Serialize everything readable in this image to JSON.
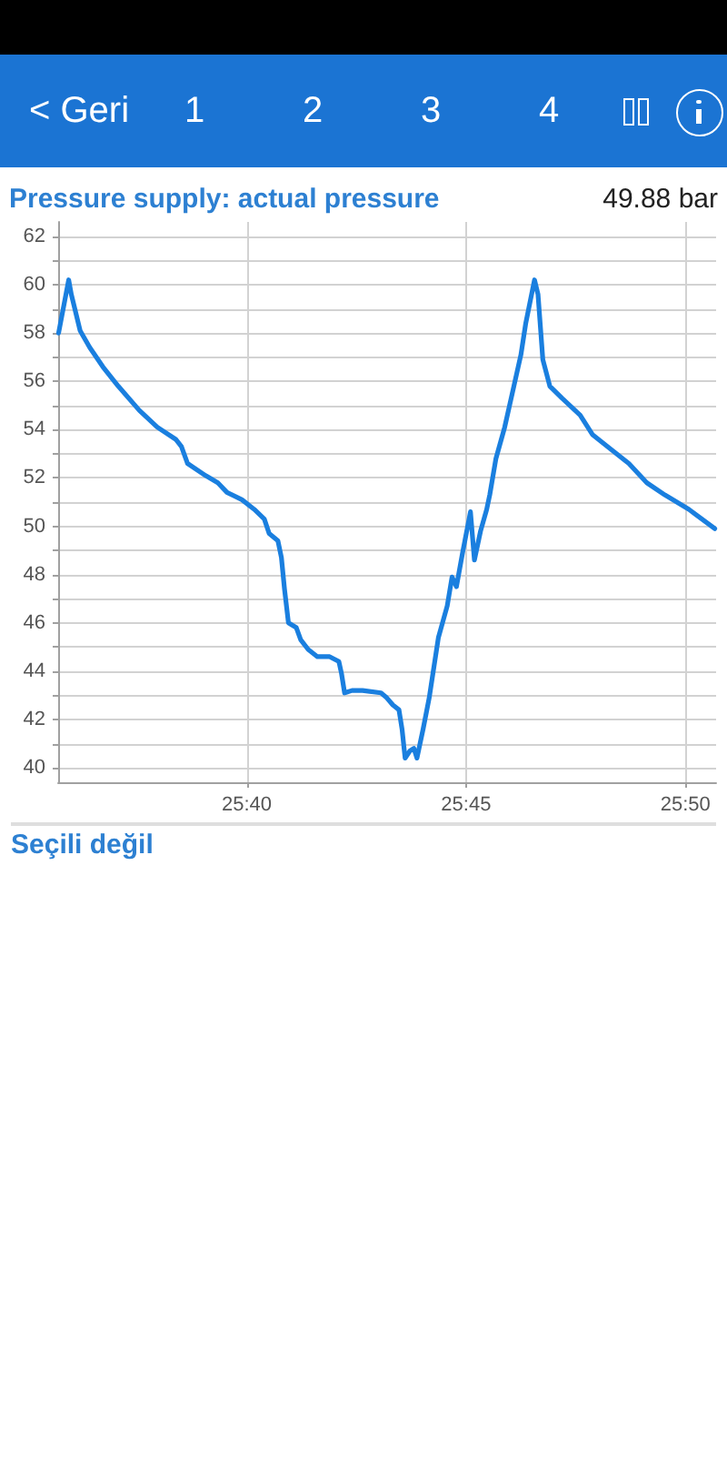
{
  "chart_data": {
    "type": "line",
    "title": "Pressure supply: actual pressure",
    "annotations": [
      "< Geri",
      "1",
      "2",
      "3",
      "4",
      "49.88 bar",
      "Seçili değil"
    ],
    "x": [
      1535.71,
      1535.94,
      1536.0,
      1536.2,
      1536.42,
      1536.72,
      1537.07,
      1537.55,
      1537.96,
      1538.38,
      1538.51,
      1538.65,
      1539.06,
      1539.34,
      1539.55,
      1539.89,
      1540.17,
      1540.4,
      1540.51,
      1540.71,
      1540.79,
      1540.86,
      1540.95,
      1541.13,
      1541.23,
      1541.4,
      1541.61,
      1541.89,
      1542.1,
      1542.16,
      1542.23,
      1542.4,
      1542.64,
      1543.06,
      1543.19,
      1543.33,
      1543.47,
      1543.54,
      1543.61,
      1543.72,
      1543.81,
      1543.88,
      1544.02,
      1544.16,
      1544.37,
      1544.57,
      1544.68,
      1544.78,
      1544.92,
      1545.1,
      1545.19,
      1545.33,
      1545.47,
      1545.54,
      1545.68,
      1545.88,
      1546.09,
      1546.25,
      1546.36,
      1546.56,
      1546.64,
      1546.75,
      1546.91,
      1547.19,
      1547.6,
      1547.88,
      1548.29,
      1548.71,
      1549.12,
      1549.53,
      1550.08,
      1550.67
    ],
    "values": [
      58.0,
      60.2,
      59.6,
      58.1,
      57.4,
      56.6,
      55.8,
      54.8,
      54.1,
      53.6,
      53.3,
      52.6,
      52.1,
      51.8,
      51.4,
      51.1,
      50.7,
      50.3,
      49.7,
      49.4,
      48.7,
      47.4,
      46.0,
      45.8,
      45.3,
      44.9,
      44.6,
      44.6,
      44.4,
      43.9,
      43.1,
      43.2,
      43.2,
      43.1,
      42.9,
      42.6,
      42.4,
      41.6,
      40.4,
      40.7,
      40.8,
      40.4,
      41.6,
      42.9,
      45.4,
      46.7,
      47.9,
      47.5,
      48.9,
      50.6,
      48.6,
      49.8,
      50.7,
      51.3,
      52.8,
      54.1,
      55.8,
      57.1,
      58.4,
      60.2,
      59.6,
      56.9,
      55.8,
      55.3,
      54.6,
      53.8,
      53.2,
      52.6,
      51.8,
      51.3,
      50.7,
      49.9
    ],
    "color": "#1a7fdf",
    "xlim": [
      1535.7,
      1550.7
    ],
    "xticks": [
      {
        "value": 1540,
        "label": "25:40"
      },
      {
        "value": 1545,
        "label": "25:45"
      },
      {
        "value": 1550,
        "label": "25:50"
      }
    ],
    "ylim": [
      39.4,
      62.6
    ],
    "yticks": [
      40,
      {
        "value": 41,
        "label": null
      },
      42,
      {
        "value": 43,
        "label": null
      },
      44,
      {
        "value": 45,
        "label": null
      },
      46,
      {
        "value": 47,
        "label": null
      },
      48,
      {
        "value": 49,
        "label": null
      },
      50,
      {
        "value": 51,
        "label": null
      },
      52,
      {
        "value": 53,
        "label": null
      },
      54,
      {
        "value": 55,
        "label": null
      },
      56,
      {
        "value": 57,
        "label": null
      },
      58,
      {
        "value": 59,
        "label": null
      },
      60,
      {
        "value": 61,
        "label": null
      },
      62
    ],
    "grid": true
  }
}
